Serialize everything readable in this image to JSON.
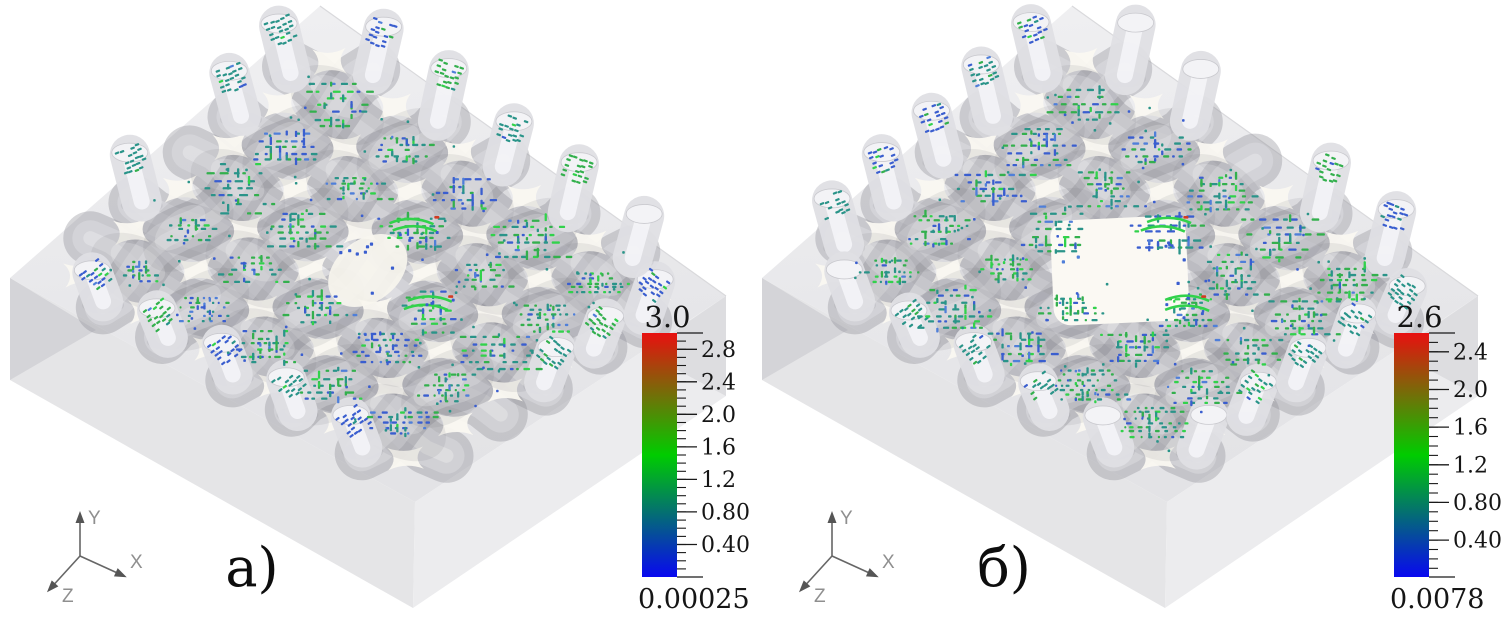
{
  "figure_labels": {
    "panel_a": "а)",
    "panel_b": "б)"
  },
  "axes_triad": {
    "x_label": "X",
    "y_label": "Y",
    "z_label": "Z"
  },
  "material_colors": {
    "background": "#ffffff",
    "box_top_light": "#f0f0f2",
    "box_top_dark": "#e3e3e6",
    "box_front_left": "#e5e5e7",
    "box_front_right": "#ececee",
    "box_corner_wedge": "#d4d4d8",
    "gap_light": "#faf8f1",
    "hole_light": "#fbf9f3",
    "tick_color": "#1a1a1a",
    "triad_color": "#666666",
    "triad_label_color": "#8f8f8f"
  },
  "point_palette": {
    "teal": "#2a9489",
    "green": "#33b04d",
    "bright_green": "#31d24b",
    "blue": "#3a5ecf",
    "steel_blue": "#4f7fd9",
    "red_accent": "#d23b22"
  },
  "chart_data": [
    {
      "type": "3d-scatter",
      "subfigure_label": "а)",
      "yarns_per_direction": 5,
      "has_center_hole": false,
      "center_feature": "sparse blue points at center crossing",
      "highlight_crossings": [
        [
          2,
          3
        ],
        [
          3,
          2
        ]
      ],
      "colorbar": {
        "max": 3.0,
        "min": 0.00025,
        "max_label": "3.0",
        "min_label": "0.00025",
        "tick_values": [
          2.8,
          2.4,
          2.0,
          1.6,
          1.2,
          0.8,
          0.4
        ],
        "tick_labels": [
          "2.8",
          "2.4",
          "2.0",
          "1.6",
          "1.2",
          "0.80",
          "0.40"
        ],
        "minor_tick_step": 0.1,
        "colors_top_mid_bottom": [
          "#e81010",
          "#00cc00",
          "#0808f0"
        ]
      }
    },
    {
      "type": "3d-scatter",
      "subfigure_label": "б)",
      "yarns_per_direction": 5,
      "has_center_hole": true,
      "center_feature": "central opening where yarn crossing is missing",
      "highlight_crossings": [
        [
          2,
          3
        ],
        [
          3,
          2
        ]
      ],
      "colorbar": {
        "max": 2.6,
        "min": 0.0078,
        "max_label": "2.6",
        "min_label": "0.0078",
        "tick_values": [
          2.4,
          2.0,
          1.6,
          1.2,
          0.8,
          0.4
        ],
        "tick_labels": [
          "2.4",
          "2.0",
          "1.6",
          "1.2",
          "0.80",
          "0.40"
        ],
        "minor_tick_step": 0.1,
        "colors_top_mid_bottom": [
          "#e81010",
          "#00cc00",
          "#0808f0"
        ]
      }
    }
  ]
}
